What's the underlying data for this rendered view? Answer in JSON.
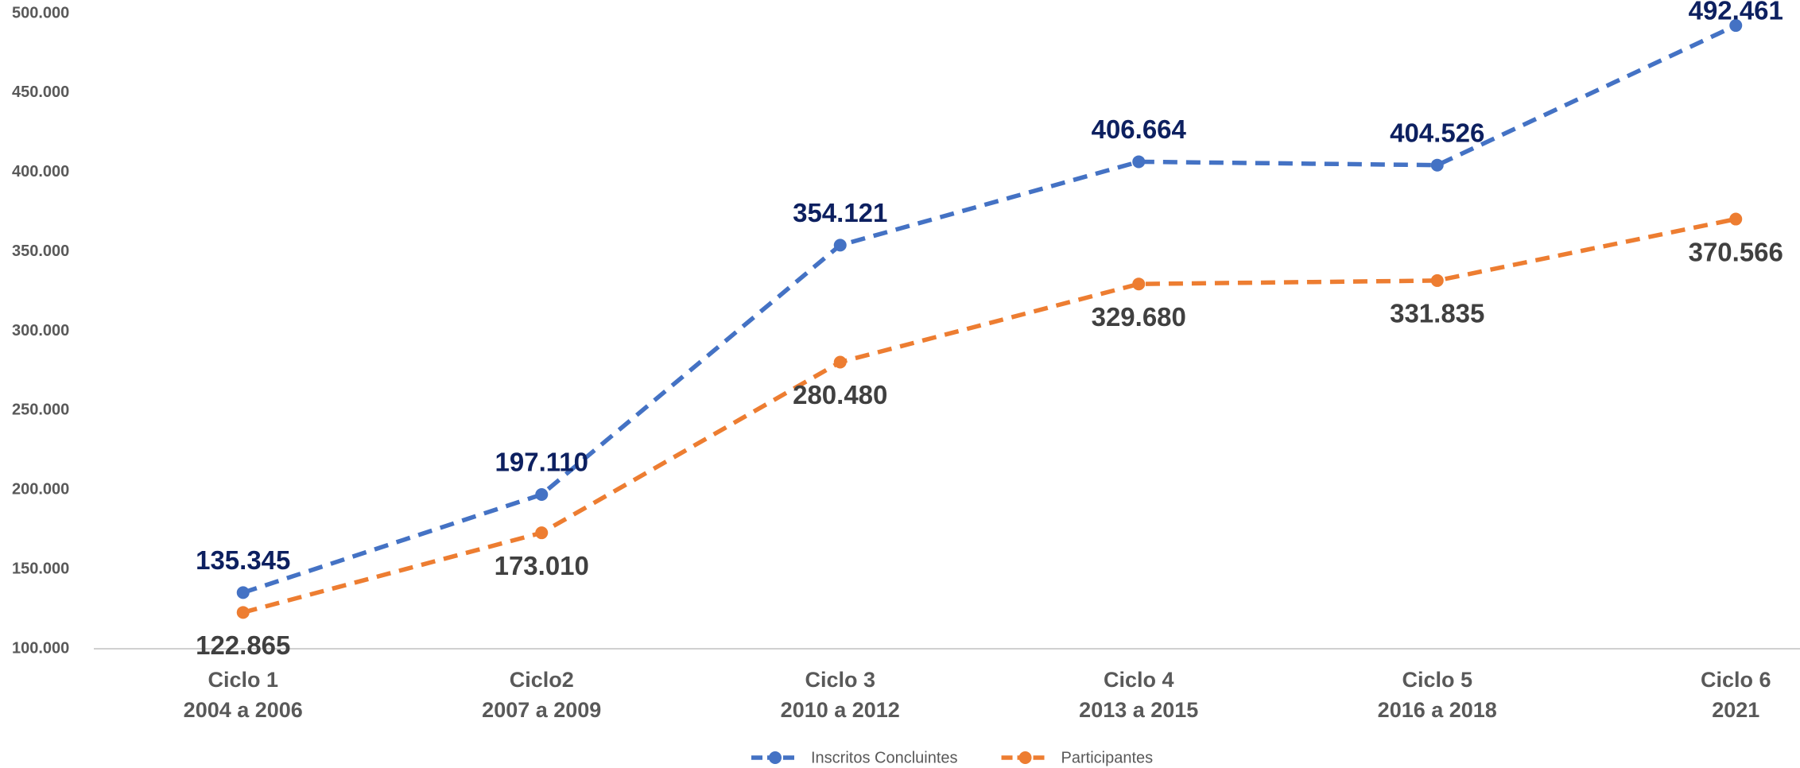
{
  "chart_data": {
    "type": "line",
    "categories": [
      [
        "Ciclo 1",
        "2004 a 2006"
      ],
      [
        "Ciclo2",
        "2007 a 2009"
      ],
      [
        "Ciclo 3",
        "2010 a 2012"
      ],
      [
        "Ciclo 4",
        "2013 a 2015"
      ],
      [
        "Ciclo 5",
        "2016 a 2018"
      ],
      [
        "Ciclo 6",
        "2021"
      ]
    ],
    "series": [
      {
        "name": "Inscritos Concluintes",
        "color": "#4472c4",
        "label_color": "#0d2060",
        "values": [
          135345,
          197110,
          354121,
          406664,
          404526,
          492461
        ],
        "value_labels": [
          "135.345",
          "197.110",
          "354.121",
          "406.664",
          "404.526",
          "492.461"
        ]
      },
      {
        "name": "Participantes",
        "color": "#ed7d31",
        "label_color": "#404040",
        "values": [
          122865,
          173010,
          280480,
          329680,
          331835,
          370566
        ],
        "value_labels": [
          "122.865",
          "173.010",
          "280.480",
          "329.680",
          "331.835",
          "370.566"
        ]
      }
    ],
    "ylim": [
      100000,
      500000
    ],
    "yticks": [
      {
        "value": 100000,
        "label": "100.000"
      },
      {
        "value": 150000,
        "label": "150.000"
      },
      {
        "value": 200000,
        "label": "200.000"
      },
      {
        "value": 250000,
        "label": "250.000"
      },
      {
        "value": 300000,
        "label": "300.000"
      },
      {
        "value": 350000,
        "label": "350.000"
      },
      {
        "value": 400000,
        "label": "400.000"
      },
      {
        "value": 450000,
        "label": "450.000"
      },
      {
        "value": 500000,
        "label": "500.000"
      }
    ],
    "legend": "bottom"
  }
}
